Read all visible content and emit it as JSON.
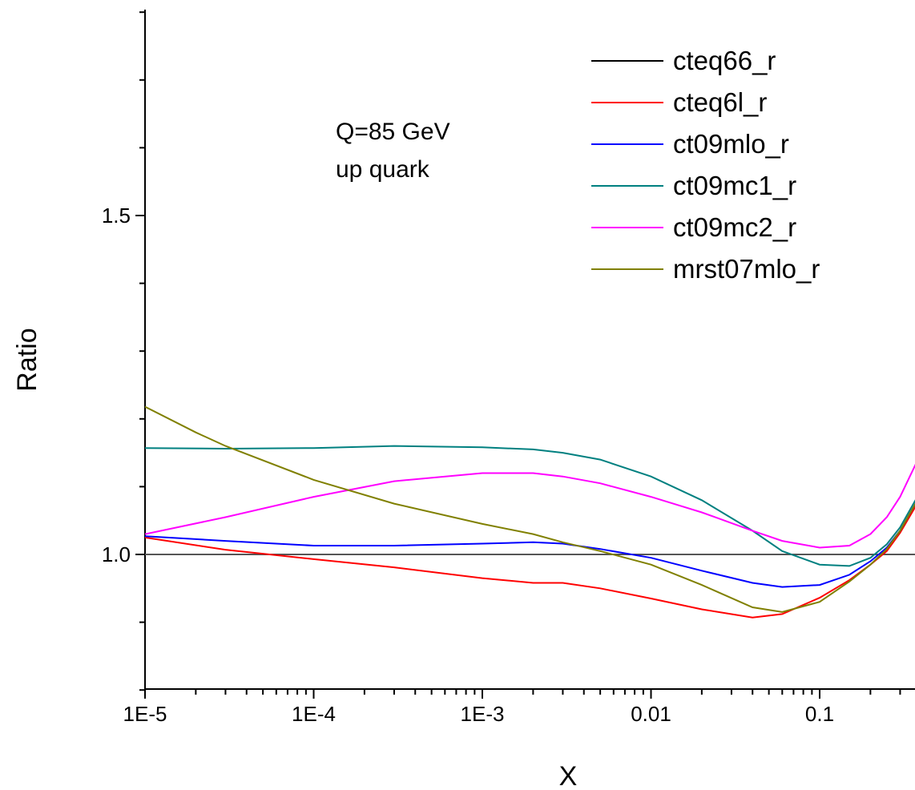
{
  "chart_data": {
    "type": "line",
    "title": "",
    "xlabel": "X",
    "ylabel": "Ratio",
    "xscale": "log",
    "xlim": [
      1e-05,
      0.4
    ],
    "ylim": [
      0.8,
      1.8
    ],
    "grid": false,
    "legend_position": "top-right",
    "x_ticks": [
      {
        "value": 1e-05,
        "label": "1E-5"
      },
      {
        "value": 0.0001,
        "label": "1E-4"
      },
      {
        "value": 0.001,
        "label": "1E-3"
      },
      {
        "value": 0.01,
        "label": "0.01"
      },
      {
        "value": 0.1,
        "label": "0.1"
      }
    ],
    "y_ticks": [
      {
        "value": 1.0,
        "label": "1.0"
      },
      {
        "value": 1.5,
        "label": "1.5"
      }
    ],
    "annotations": [
      "Q=85 GeV",
      "up quark"
    ],
    "series": [
      {
        "name": "cteq66_r",
        "color": "#000000",
        "x": [
          1e-05,
          0.4
        ],
        "y": [
          1.0,
          1.0
        ]
      },
      {
        "name": "cteq6l_r",
        "color": "#ff0000",
        "x": [
          1e-05,
          3e-05,
          0.0001,
          0.0003,
          0.001,
          0.002,
          0.003,
          0.005,
          0.01,
          0.02,
          0.04,
          0.06,
          0.1,
          0.15,
          0.2,
          0.25,
          0.3,
          0.4
        ],
        "y": [
          1.025,
          1.007,
          0.993,
          0.981,
          0.965,
          0.958,
          0.958,
          0.95,
          0.935,
          0.919,
          0.907,
          0.912,
          0.936,
          0.962,
          0.985,
          1.005,
          1.032,
          1.085
        ]
      },
      {
        "name": "ct09mlo_r",
        "color": "#0000ff",
        "x": [
          1e-05,
          3e-05,
          0.0001,
          0.0003,
          0.001,
          0.002,
          0.003,
          0.005,
          0.01,
          0.02,
          0.04,
          0.06,
          0.1,
          0.15,
          0.2,
          0.25,
          0.3,
          0.4
        ],
        "y": [
          1.027,
          1.02,
          1.013,
          1.013,
          1.016,
          1.018,
          1.016,
          1.008,
          0.995,
          0.976,
          0.958,
          0.952,
          0.955,
          0.97,
          0.99,
          1.01,
          1.035,
          1.09
        ]
      },
      {
        "name": "ct09mc1_r",
        "color": "#008080",
        "x": [
          1e-05,
          3e-05,
          0.0001,
          0.0003,
          0.001,
          0.002,
          0.003,
          0.005,
          0.01,
          0.02,
          0.04,
          0.06,
          0.1,
          0.15,
          0.2,
          0.25,
          0.3,
          0.4
        ],
        "y": [
          1.157,
          1.156,
          1.157,
          1.16,
          1.158,
          1.155,
          1.15,
          1.14,
          1.115,
          1.08,
          1.035,
          1.005,
          0.985,
          0.983,
          0.995,
          1.015,
          1.04,
          1.095
        ]
      },
      {
        "name": "ct09mc2_r",
        "color": "#ff00ff",
        "x": [
          1e-05,
          3e-05,
          0.0001,
          0.0003,
          0.001,
          0.002,
          0.003,
          0.005,
          0.01,
          0.02,
          0.04,
          0.06,
          0.1,
          0.15,
          0.2,
          0.25,
          0.3,
          0.4
        ],
        "y": [
          1.03,
          1.055,
          1.085,
          1.108,
          1.12,
          1.12,
          1.115,
          1.105,
          1.085,
          1.062,
          1.035,
          1.02,
          1.01,
          1.013,
          1.03,
          1.055,
          1.085,
          1.15
        ]
      },
      {
        "name": "mrst07mlo_r",
        "color": "#808000",
        "x": [
          1e-05,
          2e-05,
          3e-05,
          0.0001,
          0.0003,
          0.001,
          0.002,
          0.003,
          0.005,
          0.01,
          0.02,
          0.04,
          0.06,
          0.1,
          0.15,
          0.2,
          0.25,
          0.3,
          0.4
        ],
        "y": [
          1.218,
          1.18,
          1.16,
          1.11,
          1.075,
          1.045,
          1.03,
          1.018,
          1.005,
          0.985,
          0.955,
          0.922,
          0.915,
          0.93,
          0.96,
          0.985,
          1.008,
          1.035,
          1.09
        ]
      }
    ]
  }
}
